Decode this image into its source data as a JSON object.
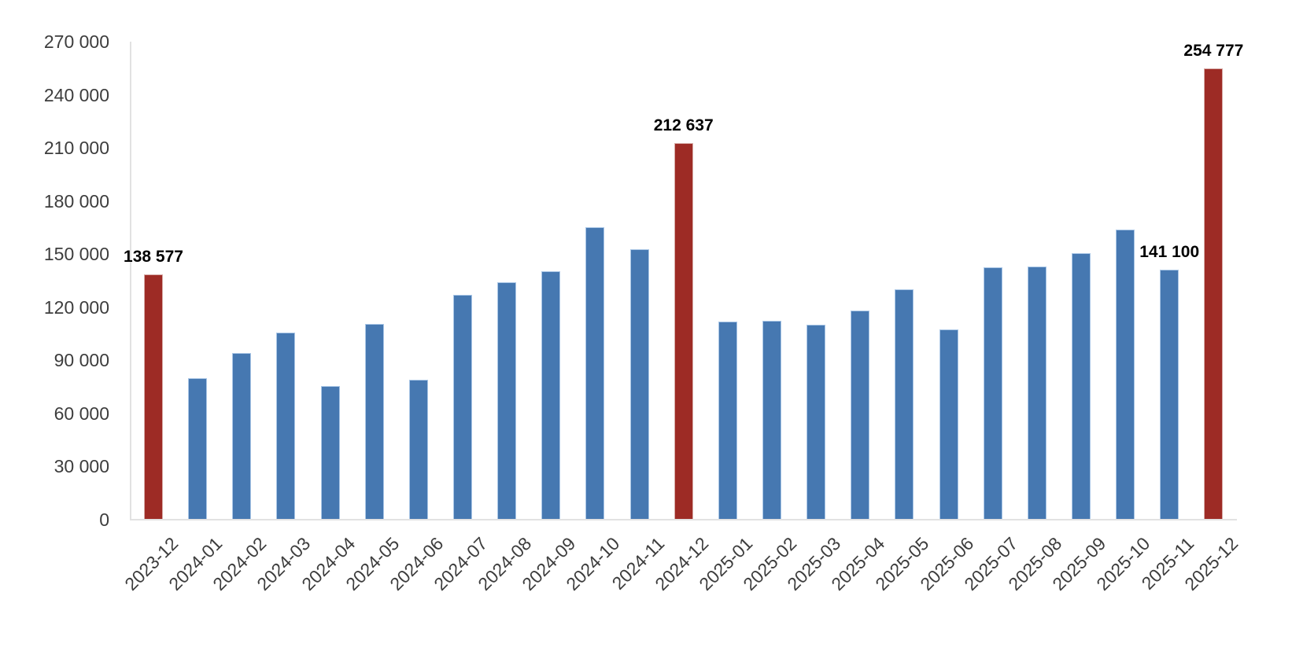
{
  "chart_data": {
    "type": "bar",
    "title": "",
    "xlabel": "",
    "ylabel": "",
    "legend": false,
    "grid": false,
    "ylim": [
      0,
      270000
    ],
    "ytick_step": 30000,
    "ytick_labels": [
      "0",
      "30 000",
      "60 000",
      "90 000",
      "120 000",
      "150 000",
      "180 000",
      "210 000",
      "240 000",
      "270 000"
    ],
    "categories": [
      "2023-12",
      "2024-01",
      "2024-02",
      "2024-03",
      "2024-04",
      "2024-05",
      "2024-06",
      "2024-07",
      "2024-08",
      "2024-09",
      "2024-10",
      "2024-11",
      "2024-12",
      "2025-01",
      "2025-02",
      "2025-03",
      "2025-04",
      "2025-05",
      "2025-06",
      "2025-07",
      "2025-08",
      "2025-09",
      "2025-10",
      "2025-11",
      "2025-12"
    ],
    "values": [
      138577,
      80000,
      94000,
      105500,
      75500,
      110500,
      79000,
      127000,
      134000,
      140500,
      165000,
      153000,
      212637,
      112000,
      112500,
      110300,
      118000,
      130000,
      107500,
      142500,
      143000,
      150500,
      164000,
      141100,
      254777
    ],
    "highlighted_categories": [
      "2023-12",
      "2024-12",
      "2025-12"
    ],
    "data_labels": [
      {
        "category": "2023-12",
        "text": "138 577"
      },
      {
        "category": "2024-12",
        "text": "212 637"
      },
      {
        "category": "2025-11",
        "text": "141 100"
      },
      {
        "category": "2025-12",
        "text": "254 777"
      }
    ],
    "colors": {
      "bar": "#4678B1",
      "bar_border": "#A9C6E6",
      "highlight_bar": "#9D2B25",
      "highlight_bar_border": "#D7ABA7",
      "axis_line": "#E2E2E2",
      "tick_label": "#3D3D3D",
      "data_label": "#000000",
      "background": "#FFFFFF"
    }
  }
}
